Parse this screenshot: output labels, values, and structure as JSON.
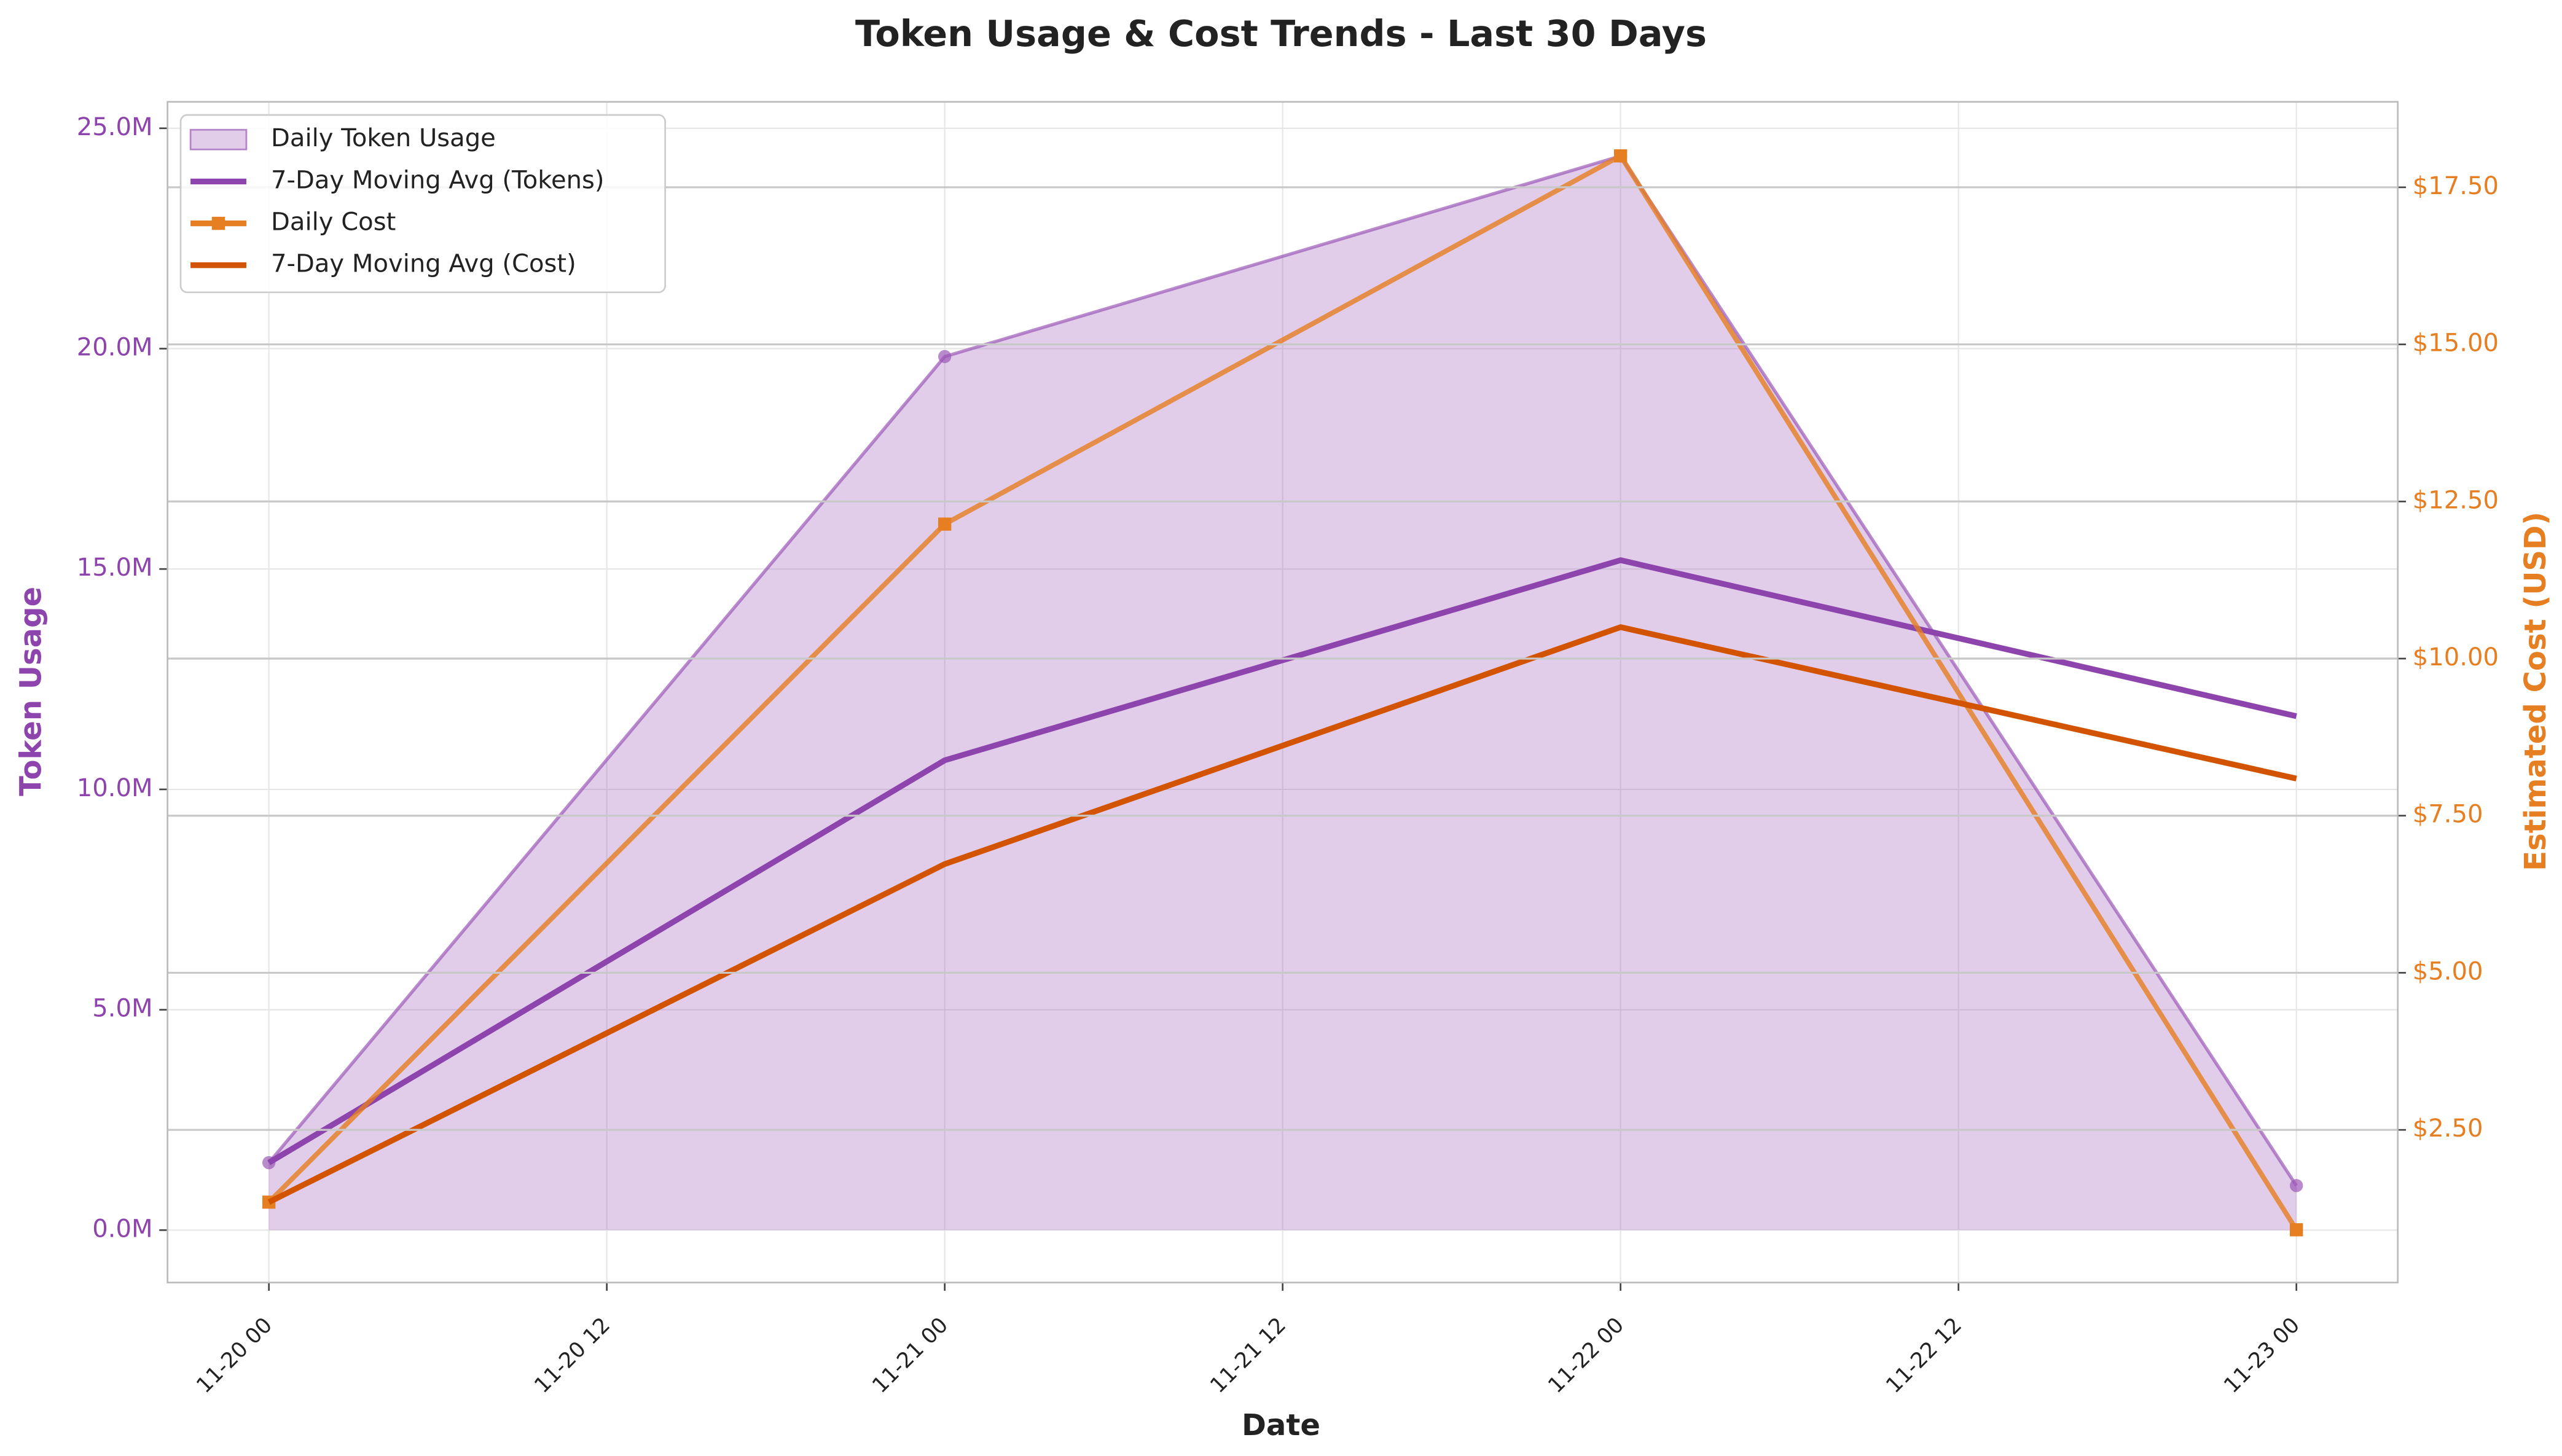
{
  "chart_data": {
    "type": "line",
    "title": "Token Usage & Cost Trends - Last 30 Days",
    "x_label": "Date",
    "y_label": "Token Usage",
    "y2_label": "Estimated Cost (USD)",
    "x": [
      "11-20 00",
      "11-21 00",
      "11-22 00",
      "11-23 00"
    ],
    "xticks": [
      "11-20 00",
      "11-20 12",
      "11-21 00",
      "11-21 12",
      "11-22 00",
      "11-22 12",
      "11-23 00"
    ],
    "ylim": [
      -1190000,
      25600000
    ],
    "yticks": [
      {
        "value": 0,
        "label": "0.0M"
      },
      {
        "value": 5000000,
        "label": "5.0M"
      },
      {
        "value": 10000000,
        "label": "10.0M"
      },
      {
        "value": 15000000,
        "label": "15.0M"
      },
      {
        "value": 20000000,
        "label": "20.0M"
      },
      {
        "value": 25000000,
        "label": "25.0M"
      }
    ],
    "y2lim": [
      0.07,
      18.86
    ],
    "y2ticks": [
      {
        "value": 2.5,
        "label": "$2.50"
      },
      {
        "value": 5,
        "label": "$5.00"
      },
      {
        "value": 7.5,
        "label": "$7.50"
      },
      {
        "value": 10,
        "label": "$10.00"
      },
      {
        "value": 12.5,
        "label": "$12.50"
      },
      {
        "value": 15,
        "label": "$15.00"
      },
      {
        "value": 17.5,
        "label": "$17.50"
      }
    ],
    "grid": true,
    "legend": "upper left",
    "series": [
      {
        "name": "Daily Token Usage",
        "color": "#9b59b6",
        "fill": true,
        "marker": "circle",
        "axis": "y",
        "values": [
          1530000,
          19820000,
          24370000,
          1010000
        ]
      },
      {
        "name": "7-Day Moving Avg (Tokens)",
        "color": "#8e44ad",
        "axis": "y",
        "values": [
          1530000,
          10660000,
          15200000,
          11660000
        ]
      },
      {
        "name": "Daily Cost",
        "color": "#e67e22",
        "marker": "square",
        "axis": "y2",
        "values": [
          1.35,
          12.14,
          18.0,
          0.91
        ]
      },
      {
        "name": "7-Day Moving Avg (Cost)",
        "color": "#d35400",
        "axis": "y2",
        "values": [
          1.35,
          6.73,
          10.5,
          8.09
        ]
      }
    ]
  }
}
